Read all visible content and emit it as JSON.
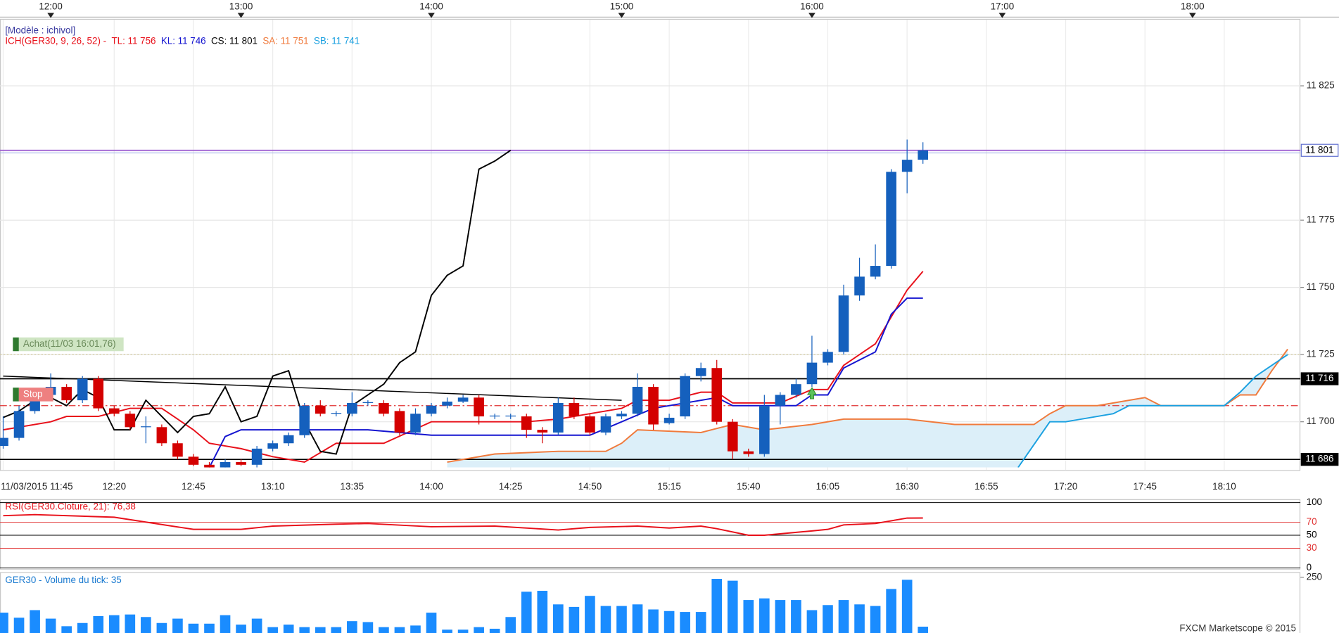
{
  "chart_data": [
    {
      "type": "candlestick",
      "model": "[Modèle : ichivol]",
      "indicator": "ICH(GER30, 9, 26, 52) -",
      "up_color": "#1560bd",
      "down_color": "#d40000",
      "xlim": [
        "11:44",
        "18:34"
      ],
      "ylim": [
        11683,
        11848
      ],
      "yticks": [
        {
          "value": 11700,
          "label": "11 700"
        },
        {
          "value": 11725,
          "label": "11 725"
        },
        {
          "value": 11750,
          "label": "11 750"
        },
        {
          "value": 11775,
          "label": "11 775"
        },
        {
          "value": 11825,
          "label": "11 825"
        }
      ],
      "xticks": [
        {
          "value": "11:45",
          "label": "11/03/2015 11:45"
        },
        "12:20",
        "12:45",
        "13:10",
        "13:35",
        "14:00",
        "14:25",
        "14:50",
        "15:15",
        "15:40",
        "16:05",
        "16:30",
        "16:55",
        "17:20",
        "17:45",
        "18:10"
      ],
      "top_xticks": [
        "12:00",
        "13:00",
        "14:00",
        "15:00",
        "16:00",
        "17:00",
        "18:00"
      ],
      "grid": true,
      "x": [
        "11:45",
        "11:50",
        "11:55",
        "12:00",
        "12:05",
        "12:10",
        "12:15",
        "12:20",
        "12:25",
        "12:30",
        "12:35",
        "12:40",
        "12:45",
        "12:50",
        "12:55",
        "13:00",
        "13:05",
        "13:10",
        "13:15",
        "13:20",
        "13:25",
        "13:30",
        "13:35",
        "13:40",
        "13:45",
        "13:50",
        "13:55",
        "14:00",
        "14:05",
        "14:10",
        "14:15",
        "14:20",
        "14:25",
        "14:30",
        "14:35",
        "14:40",
        "14:45",
        "14:50",
        "14:55",
        "15:00",
        "15:05",
        "15:10",
        "15:15",
        "15:20",
        "15:25",
        "15:30",
        "15:35",
        "15:40",
        "15:45",
        "15:50",
        "15:55",
        "16:00",
        "16:05",
        "16:10",
        "16:15",
        "16:20",
        "16:25",
        "16:30",
        "16:35"
      ],
      "open": [
        11691,
        11694,
        11704,
        11710,
        11713,
        11708,
        11716,
        11705,
        11703,
        11698,
        11698,
        11692,
        11687,
        11684,
        11683,
        11685,
        11684,
        11690,
        11692,
        11695,
        11706,
        11703,
        11703,
        11707,
        11707,
        11704,
        11696,
        11703,
        11706,
        11707.5,
        11709,
        11702,
        11702,
        11702,
        11697,
        11696,
        11707,
        11702,
        11696,
        11702,
        11703,
        11713,
        11699.5,
        11702,
        11717,
        11720,
        11700,
        11689,
        11688,
        11706,
        11710,
        11714,
        11722,
        11726,
        11747,
        11754,
        11758,
        11793,
        11797.5
      ],
      "high": [
        11702,
        11706,
        11712,
        11718,
        11714,
        11717,
        11717,
        11706,
        11704,
        11702,
        11699,
        11693,
        11688,
        11685,
        11686,
        11686,
        11691,
        11693,
        11696,
        11707,
        11708,
        11704,
        11711,
        11708,
        11708,
        11705,
        11705,
        11707,
        11709,
        11710,
        11710,
        11703,
        11703,
        11703,
        11698,
        11709,
        11709,
        11703,
        11703,
        11704,
        11718,
        11714,
        11703,
        11718,
        11722,
        11723,
        11701,
        11690,
        11710,
        11711,
        11716,
        11732,
        11727,
        11751,
        11761,
        11766,
        11794,
        11805,
        11804
      ],
      "low": [
        11690,
        11693,
        11703,
        11709,
        11707,
        11707,
        11704,
        11702,
        11697,
        11692,
        11691,
        11686,
        11683.5,
        11682,
        11682,
        11683.5,
        11683,
        11689,
        11691,
        11694,
        11702,
        11702,
        11702,
        11706,
        11702,
        11695,
        11695,
        11702,
        11705,
        11707,
        11699,
        11701,
        11701,
        11694,
        11692,
        11695,
        11701,
        11695,
        11695,
        11701,
        11702,
        11697,
        11699,
        11701,
        11715,
        11699,
        11686,
        11687,
        11687,
        11699,
        11709,
        11713,
        11721,
        11725,
        11745,
        11753,
        11757,
        11785,
        11796
      ],
      "close": [
        11694,
        11704,
        11710,
        11713,
        11708,
        11716,
        11705,
        11703,
        11698,
        11698.3,
        11692,
        11687,
        11684,
        11683,
        11685,
        11684,
        11690,
        11692,
        11695,
        11706,
        11703,
        11703.3,
        11707,
        11707.3,
        11703,
        11696,
        11703,
        11706,
        11707.5,
        11709,
        11702,
        11702.3,
        11702.3,
        11697,
        11696,
        11707,
        11702,
        11696,
        11702,
        11703,
        11713,
        11699,
        11701.5,
        11717,
        11720,
        11700,
        11689,
        11688,
        11706,
        11710,
        11714,
        11722,
        11726,
        11747,
        11754,
        11758,
        11793,
        11797.5,
        11801
      ],
      "lines": [
        {
          "name": "TL:",
          "last_label": "11 756",
          "color": "#e8101a",
          "x": [
            "11:45",
            "12:00",
            "12:05",
            "12:15",
            "12:25",
            "12:35",
            "12:45",
            "12:50",
            "13:00",
            "13:10",
            "13:20",
            "13:30",
            "13:45",
            "14:00",
            "14:20",
            "14:30",
            "14:40",
            "14:50",
            "15:00",
            "15:05",
            "15:15",
            "15:25",
            "15:30",
            "15:35",
            "15:50",
            "16:00",
            "16:05",
            "16:10",
            "16:20",
            "16:30",
            "16:35"
          ],
          "values": [
            11697,
            11700,
            11702,
            11702,
            11705,
            11705,
            11697,
            11692,
            11690,
            11687,
            11685,
            11692,
            11692,
            11700,
            11700,
            11700,
            11701,
            11703,
            11705,
            11708,
            11708,
            11711,
            11711,
            11707,
            11707,
            11712,
            11712,
            11721,
            11729,
            11749,
            11756
          ]
        },
        {
          "name": "KL:",
          "last_label": "11 746",
          "color": "#1414d0",
          "x": [
            "12:50",
            "12:55",
            "13:00",
            "13:40",
            "14:00",
            "14:50",
            "15:00",
            "15:10",
            "15:30",
            "15:35",
            "15:55",
            "16:00",
            "16:05",
            "16:10",
            "16:20",
            "16:25",
            "16:30",
            "16:35"
          ],
          "values": [
            11683,
            11694.5,
            11697,
            11697,
            11695,
            11695,
            11700,
            11705,
            11709,
            11706,
            11706,
            11710,
            11710,
            11720,
            11726,
            11740,
            11746,
            11746
          ]
        },
        {
          "name": "CS:",
          "last_label": "11 801",
          "color": "#000000",
          "x": [
            "11:45",
            "11:50",
            "11:55",
            "12:00",
            "12:05",
            "12:10",
            "12:15",
            "12:20",
            "12:25",
            "12:30",
            "12:35",
            "12:40",
            "12:45",
            "12:50",
            "12:55",
            "13:00",
            "13:05",
            "13:10",
            "13:15",
            "13:20",
            "13:25",
            "13:30",
            "13:35",
            "13:40",
            "13:45",
            "13:50",
            "13:55",
            "14:00",
            "14:05",
            "14:10",
            "14:15",
            "14:20",
            "14:25"
          ],
          "values": [
            11701.6,
            11704,
            11708,
            11709,
            11706,
            11712,
            11709,
            11697,
            11697,
            11708,
            11702,
            11696,
            11702,
            11703,
            11713,
            11700,
            11702,
            11717,
            11719,
            11700,
            11689,
            11688,
            11706,
            11710,
            11714,
            11722,
            11726,
            11747,
            11754.5,
            11758,
            11794,
            11797,
            11801
          ]
        },
        {
          "name": "SA:",
          "last_label": "11 751",
          "color": "#f07a3c",
          "x": [
            "14:05",
            "14:20",
            "14:40",
            "14:55",
            "15:00",
            "15:05",
            "15:25",
            "15:35",
            "15:45",
            "16:00",
            "16:10",
            "16:30",
            "16:45",
            "17:10",
            "17:15",
            "17:20",
            "17:30",
            "17:45",
            "17:50",
            "18:10",
            "18:15",
            "18:20",
            "18:25",
            "18:30"
          ],
          "values": [
            11685,
            11688,
            11689,
            11689,
            11692,
            11697,
            11696,
            11699,
            11697,
            11699,
            11701,
            11701,
            11699,
            11699,
            11703,
            11706,
            11706,
            11709,
            11706,
            11706,
            11710,
            11710,
            11719,
            11727
          ]
        },
        {
          "name": "SB:",
          "last_label": "11 741",
          "color": "#1aa0e0",
          "x": [
            "17:05",
            "17:15",
            "17:20",
            "17:35",
            "17:40",
            "18:05",
            "18:10",
            "18:15",
            "18:20",
            "18:30"
          ],
          "values": [
            11683,
            11700,
            11700,
            11703,
            11706,
            11706,
            11706,
            11711,
            11717,
            11725
          ]
        }
      ],
      "cloud_color": "#dceff9",
      "trendline": {
        "x": [
          "11:45",
          "15:00"
        ],
        "values": [
          11717,
          11708
        ],
        "color": "#000000"
      },
      "levels": [
        {
          "value": 11801,
          "label": "11 801",
          "color": "#9b59d0"
        },
        {
          "value": 11716,
          "label": "11 716",
          "color": "#000000"
        },
        {
          "value": 11686,
          "label": "11 686",
          "color": "#000000"
        }
      ],
      "orders": [
        {
          "name": "Achat(11/03 16:01,76)",
          "value": 11725,
          "color": "#d2c9a0"
        },
        {
          "name": "Stop",
          "value": 11706,
          "color": "#e03030"
        }
      ],
      "copyright": "FXCM Marketscope © 2015"
    },
    {
      "type": "line",
      "title": "RSI(GER30.Cloture, 21): 76,38",
      "color": "#e8101a",
      "xlim": [
        "11:44",
        "18:34"
      ],
      "ylim": [
        0,
        100
      ],
      "yticks": [
        0,
        30,
        50,
        70,
        100
      ],
      "ytick_colors": [
        "#000000",
        "#e03030",
        "#000000",
        "#e03030",
        "#000000"
      ],
      "x": [
        "11:45",
        "11:55",
        "12:20",
        "12:45",
        "13:00",
        "13:10",
        "13:30",
        "13:40",
        "14:00",
        "14:20",
        "14:40",
        "14:50",
        "15:05",
        "15:15",
        "15:25",
        "15:30",
        "15:40",
        "15:45",
        "16:00",
        "16:05",
        "16:10",
        "16:20",
        "16:30",
        "16:35"
      ],
      "values": [
        80,
        81.6,
        77.6,
        59,
        59,
        64,
        67,
        68,
        63,
        64,
        58,
        62,
        64,
        61,
        64,
        60,
        50,
        50,
        56.6,
        59,
        65.8,
        68,
        76.3,
        76.38
      ]
    },
    {
      "type": "bar",
      "title": "GER30 - Volume du tick: 35",
      "color": "#1a8cff",
      "xlim": [
        "11:44",
        "18:34"
      ],
      "ylim": [
        0,
        250
      ],
      "yticks": [
        250
      ],
      "x": [
        "11:45",
        "11:50",
        "11:55",
        "12:00",
        "12:05",
        "12:10",
        "12:15",
        "12:20",
        "12:25",
        "12:30",
        "12:35",
        "12:40",
        "12:45",
        "12:50",
        "12:55",
        "13:00",
        "13:05",
        "13:10",
        "13:15",
        "13:20",
        "13:25",
        "13:30",
        "13:35",
        "13:40",
        "13:45",
        "13:50",
        "13:55",
        "14:00",
        "14:05",
        "14:10",
        "14:15",
        "14:20",
        "14:25",
        "14:30",
        "14:35",
        "14:40",
        "14:45",
        "14:50",
        "14:55",
        "15:00",
        "15:05",
        "15:10",
        "15:15",
        "15:20",
        "15:25",
        "15:30",
        "15:35",
        "15:40",
        "15:45",
        "15:50",
        "15:55",
        "16:00",
        "16:05",
        "16:10",
        "16:15",
        "16:20",
        "16:25",
        "16:30",
        "16:35"
      ],
      "values": [
        96,
        74,
        107,
        70,
        37,
        51,
        81,
        85,
        88,
        77,
        51,
        70,
        48,
        48,
        85,
        44,
        70,
        33,
        44,
        33,
        33,
        33,
        59,
        55,
        33,
        33,
        40,
        96,
        22,
        22,
        33,
        26,
        77,
        187,
        191,
        132,
        121,
        169,
        125,
        125,
        132,
        110,
        103,
        99,
        99,
        243,
        235,
        151,
        158,
        151,
        151,
        107,
        129,
        151,
        132,
        125,
        199,
        239,
        35
      ]
    }
  ]
}
